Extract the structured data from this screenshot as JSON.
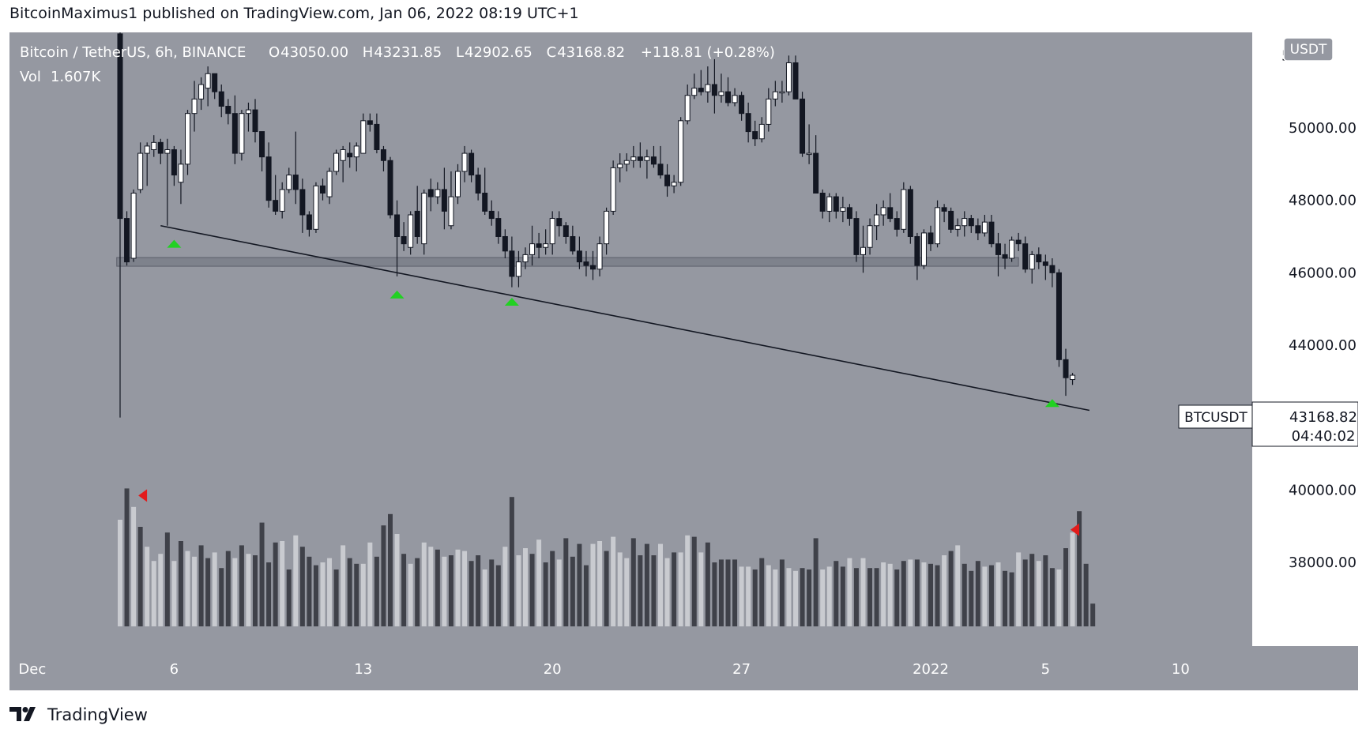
{
  "header": {
    "published": "BitcoinMaximus1 published on TradingView.com, Jan 06, 2022 08:19 UTC+1"
  },
  "footer": {
    "brand": "TradingView",
    "logo_icon": "tradingview-logo-icon"
  },
  "colors": {
    "plot_bg": "#9598a1",
    "axis_bg": "#ffffff",
    "up_candle": "#ffffff",
    "down_candle": "#131722",
    "vol_up": "#c9cbd0",
    "vol_down": "#3f4149",
    "marker_green": "#22d122",
    "marker_red": "#e21b1b",
    "support_zone": "#7e828c"
  },
  "legend": {
    "symbol": "Bitcoin / TetherUS, 6h, BINANCE",
    "o_label": "O",
    "o_value": "43050.00",
    "h_label": "H",
    "h_value": "43231.85",
    "l_label": "L",
    "l_value": "42902.65",
    "c_label": "C",
    "c_value": "43168.82",
    "change": "+118.81 (+0.28%)",
    "vol_label": "Vol",
    "vol_value": "1.607K"
  },
  "currency_badge": "USDT",
  "price_label": {
    "symbol": "BTCUSDT",
    "price": "43168.82",
    "countdown": "04:40:02"
  },
  "chart_data": {
    "type": "candlestick",
    "title": "Bitcoin / TetherUS, 6h, BINANCE",
    "ylim": [
      37300,
      52700
    ],
    "y_ticks": [
      38000,
      40000,
      42000,
      44000,
      46000,
      48000,
      50000
    ],
    "y_tick_labels": [
      "38000.00",
      "40000.00",
      "42000.00",
      "44000.00",
      "46000.00",
      "48000.00",
      "50000.00"
    ],
    "y_top_label_partial": "52",
    "x_ticks": [
      "Dec",
      "6",
      "13",
      "20",
      "27",
      "2022",
      "5",
      "10"
    ],
    "x_tick_index": [
      -13,
      8,
      36,
      64,
      92,
      120,
      137,
      157
    ],
    "candle_x0_day": 4.0,
    "bar_period_days": 0.25,
    "candles": [
      [
        52600,
        52700,
        47500,
        47500
      ],
      [
        47500,
        47700,
        46200,
        46300
      ],
      [
        46400,
        48300,
        46300,
        48200
      ],
      [
        48300,
        49600,
        48200,
        49300
      ],
      [
        49300,
        49600,
        48400,
        49500
      ],
      [
        49400,
        49800,
        49200,
        49600
      ],
      [
        49600,
        49700,
        49000,
        49300
      ],
      [
        49300,
        49700,
        47300,
        49400
      ],
      [
        49400,
        49500,
        48400,
        48700
      ],
      [
        48500,
        49400,
        47900,
        49000
      ],
      [
        49000,
        50500,
        48700,
        50400
      ],
      [
        50400,
        51300,
        49900,
        50800
      ],
      [
        50800,
        51400,
        50500,
        51200
      ],
      [
        51100,
        51700,
        50600,
        51500
      ],
      [
        51500,
        51400,
        50800,
        51000
      ],
      [
        51000,
        51200,
        50300,
        50600
      ],
      [
        50600,
        50800,
        50100,
        50400
      ],
      [
        50400,
        50900,
        49000,
        49300
      ],
      [
        49300,
        50500,
        49100,
        50400
      ],
      [
        50400,
        50700,
        49900,
        50500
      ],
      [
        50500,
        50800,
        49600,
        49900
      ],
      [
        49900,
        49900,
        48800,
        49200
      ],
      [
        49200,
        49600,
        47800,
        48000
      ],
      [
        48000,
        48700,
        47600,
        47700
      ],
      [
        47700,
        48500,
        47500,
        48300
      ],
      [
        48300,
        48900,
        48200,
        48700
      ],
      [
        48700,
        49900,
        47900,
        48300
      ],
      [
        48300,
        48600,
        47100,
        47600
      ],
      [
        47600,
        47700,
        47000,
        47200
      ],
      [
        47200,
        48500,
        47100,
        48400
      ],
      [
        48400,
        48600,
        48000,
        48200
      ],
      [
        48100,
        48900,
        47900,
        48800
      ],
      [
        48800,
        49400,
        48700,
        49300
      ],
      [
        49100,
        49500,
        48500,
        49400
      ],
      [
        49300,
        49600,
        48900,
        49200
      ],
      [
        49200,
        49600,
        48800,
        49500
      ],
      [
        49300,
        50400,
        49300,
        50200
      ],
      [
        50200,
        50400,
        49900,
        50100
      ],
      [
        50100,
        50400,
        49300,
        49400
      ],
      [
        49400,
        49500,
        48800,
        49100
      ],
      [
        49100,
        49200,
        47500,
        47600
      ],
      [
        47600,
        48000,
        45900,
        47000
      ],
      [
        47000,
        47400,
        46600,
        46800
      ],
      [
        46700,
        47700,
        46500,
        47600
      ],
      [
        47700,
        48400,
        46800,
        47000
      ],
      [
        46800,
        48300,
        46500,
        48200
      ],
      [
        48300,
        48600,
        47700,
        48100
      ],
      [
        48100,
        48500,
        47900,
        48300
      ],
      [
        48300,
        48900,
        47200,
        47700
      ],
      [
        47300,
        48800,
        47200,
        48100
      ],
      [
        48100,
        49000,
        47900,
        48800
      ],
      [
        48800,
        49500,
        48500,
        49300
      ],
      [
        49300,
        49400,
        48500,
        48700
      ],
      [
        48700,
        48900,
        48000,
        48200
      ],
      [
        48200,
        48900,
        47600,
        47700
      ],
      [
        47700,
        48000,
        47300,
        47500
      ],
      [
        47500,
        47700,
        46800,
        47000
      ],
      [
        47000,
        47200,
        46400,
        46600
      ],
      [
        46600,
        47000,
        45600,
        45900
      ],
      [
        45900,
        46600,
        45600,
        46300
      ],
      [
        46300,
        46700,
        46100,
        46500
      ],
      [
        46500,
        47300,
        46200,
        46800
      ],
      [
        46800,
        47100,
        46400,
        46700
      ],
      [
        46700,
        47200,
        46500,
        46800
      ],
      [
        46800,
        47700,
        46500,
        47500
      ],
      [
        47500,
        47700,
        47000,
        47300
      ],
      [
        47300,
        47400,
        46800,
        47000
      ],
      [
        47000,
        47300,
        46500,
        46600
      ],
      [
        46600,
        47000,
        46100,
        46300
      ],
      [
        46300,
        46600,
        45900,
        46200
      ],
      [
        46200,
        46600,
        45800,
        46100
      ],
      [
        46100,
        47000,
        45900,
        46800
      ],
      [
        46800,
        47800,
        46500,
        47700
      ],
      [
        47700,
        49100,
        47600,
        48900
      ],
      [
        48900,
        49300,
        48500,
        49000
      ],
      [
        49000,
        49300,
        48800,
        49100
      ],
      [
        49100,
        49500,
        48900,
        49200
      ],
      [
        49200,
        49600,
        48900,
        49100
      ],
      [
        49100,
        49400,
        48600,
        49200
      ],
      [
        49200,
        49500,
        48900,
        49000
      ],
      [
        49000,
        49500,
        48600,
        48700
      ],
      [
        48700,
        49000,
        48100,
        48400
      ],
      [
        48400,
        48700,
        48200,
        48500
      ],
      [
        48500,
        50300,
        48400,
        50200
      ],
      [
        50200,
        51200,
        50100,
        50900
      ],
      [
        50900,
        51500,
        50800,
        51100
      ],
      [
        51100,
        51600,
        50900,
        51000
      ],
      [
        51000,
        51700,
        50700,
        51200
      ],
      [
        51200,
        51900,
        50400,
        50900
      ],
      [
        50900,
        51500,
        50700,
        51000
      ],
      [
        51000,
        51400,
        50600,
        50700
      ],
      [
        50700,
        51100,
        50600,
        50900
      ],
      [
        50900,
        51000,
        50200,
        50400
      ],
      [
        50400,
        50700,
        49600,
        49900
      ],
      [
        49900,
        50200,
        49500,
        49700
      ],
      [
        49700,
        50300,
        49600,
        50100
      ],
      [
        50100,
        51100,
        49900,
        50800
      ],
      [
        50800,
        51300,
        50600,
        51000
      ],
      [
        51000,
        51300,
        50700,
        51000
      ],
      [
        51000,
        52000,
        50900,
        51800
      ],
      [
        51800,
        52000,
        50800,
        50800
      ],
      [
        50800,
        51000,
        49200,
        49300
      ],
      [
        49300,
        50100,
        49000,
        49300
      ],
      [
        49300,
        49800,
        48200,
        48200
      ],
      [
        48200,
        48300,
        47500,
        47700
      ],
      [
        47700,
        48200,
        47400,
        48100
      ],
      [
        48100,
        48200,
        47500,
        47700
      ],
      [
        47700,
        48100,
        47400,
        47800
      ],
      [
        47800,
        47900,
        47300,
        47500
      ],
      [
        47500,
        47700,
        46300,
        46500
      ],
      [
        46500,
        47300,
        46000,
        46700
      ],
      [
        46700,
        47500,
        46500,
        47300
      ],
      [
        47300,
        47900,
        46900,
        47600
      ],
      [
        47600,
        48000,
        47300,
        47800
      ],
      [
        47800,
        48200,
        47400,
        47500
      ],
      [
        47500,
        47700,
        47000,
        47200
      ],
      [
        47200,
        48500,
        47100,
        48300
      ],
      [
        48300,
        48400,
        46800,
        47000
      ],
      [
        47000,
        47100,
        45800,
        46200
      ],
      [
        46200,
        47200,
        46100,
        47100
      ],
      [
        47100,
        47300,
        46600,
        46800
      ],
      [
        46800,
        48000,
        46700,
        47800
      ],
      [
        47800,
        47900,
        47400,
        47700
      ],
      [
        47700,
        47800,
        47100,
        47200
      ],
      [
        47200,
        47500,
        47000,
        47300
      ],
      [
        47300,
        47700,
        47000,
        47500
      ],
      [
        47500,
        47600,
        47100,
        47300
      ],
      [
        47300,
        47500,
        46900,
        47100
      ],
      [
        47100,
        47600,
        47000,
        47400
      ],
      [
        47400,
        47600,
        46700,
        46800
      ],
      [
        46800,
        47100,
        45900,
        46500
      ],
      [
        46500,
        46800,
        46100,
        46400
      ],
      [
        46400,
        47000,
        46300,
        46900
      ],
      [
        46900,
        47100,
        46600,
        46800
      ],
      [
        46800,
        47000,
        46000,
        46100
      ],
      [
        46100,
        46600,
        45700,
        46500
      ],
      [
        46500,
        46700,
        46100,
        46300
      ],
      [
        46300,
        46500,
        45800,
        46200
      ],
      [
        46200,
        46400,
        45600,
        46000
      ],
      [
        46000,
        46100,
        43400,
        43600
      ],
      [
        43600,
        43900,
        42600,
        43100
      ],
      [
        43050,
        43231.85,
        42902.65,
        43168.82
      ]
    ],
    "volume_ylim": [
      0,
      100
    ],
    "volumes": [
      75,
      97,
      84,
      70,
      56,
      46,
      51,
      66,
      46,
      60,
      53,
      49,
      57,
      48,
      52,
      41,
      53,
      48,
      57,
      51,
      50,
      73,
      45,
      59,
      60,
      40,
      64,
      56,
      49,
      43,
      45,
      48,
      40,
      57,
      48,
      44,
      44,
      59,
      49,
      71,
      79,
      65,
      51,
      44,
      48,
      59,
      56,
      54,
      49,
      50,
      54,
      53,
      46,
      50,
      40,
      47,
      43,
      56,
      91,
      50,
      55,
      51,
      61,
      45,
      53,
      47,
      62,
      49,
      58,
      43,
      58,
      60,
      53,
      63,
      52,
      48,
      62,
      50,
      58,
      50,
      58,
      48,
      52,
      52,
      64,
      63,
      52,
      59,
      45,
      47,
      47,
      47,
      42,
      42,
      40,
      48,
      43,
      40,
      47,
      41,
      39,
      41,
      40,
      62,
      40,
      42,
      46,
      42,
      48,
      41,
      48,
      41,
      41,
      45,
      44,
      40,
      46,
      47,
      47,
      45,
      44,
      43,
      50,
      53,
      57,
      44,
      39,
      46,
      42,
      43,
      45,
      39,
      38,
      52,
      47,
      51,
      46,
      50,
      41,
      40,
      55,
      66,
      81,
      44,
      16
    ],
    "volume_up": [
      true,
      false,
      true,
      false,
      true,
      true,
      true,
      false,
      true,
      false,
      true,
      true,
      false,
      false,
      true,
      false,
      false,
      true,
      false,
      true,
      false,
      false,
      false,
      false,
      true,
      false,
      true,
      false,
      false,
      false,
      true,
      true,
      false,
      true,
      false,
      false,
      true,
      true,
      false,
      false,
      false,
      true,
      false,
      true,
      false,
      true,
      true,
      false,
      true,
      false,
      true,
      true,
      false,
      false,
      true,
      false,
      false,
      true,
      false,
      true,
      true,
      false,
      true,
      false,
      false,
      true,
      false,
      false,
      false,
      false,
      true,
      true,
      false,
      true,
      true,
      true,
      false,
      false,
      false,
      false,
      true,
      true,
      false,
      true,
      true,
      false,
      true,
      false,
      false,
      false,
      false,
      false,
      true,
      true,
      false,
      false,
      true,
      true,
      false,
      true,
      true,
      false,
      false,
      false,
      true,
      true,
      false,
      false,
      true,
      false,
      true,
      false,
      false,
      true,
      true,
      false,
      false,
      true,
      false,
      true,
      false,
      false,
      true,
      false,
      true,
      false,
      false,
      false,
      true,
      false,
      true,
      false,
      false,
      true,
      false,
      false,
      true,
      false,
      false,
      true,
      false,
      true,
      false,
      false,
      false
    ],
    "support_zone": [
      46180,
      46420
    ],
    "support_zone_x": [
      -0.5,
      133
    ],
    "trendline": {
      "x1": 6,
      "y1": 47300,
      "x2": 143.5,
      "y2": 42200
    },
    "green_arrows": [
      {
        "x": 8,
        "y": 46800
      },
      {
        "x": 41,
        "y": 45400
      },
      {
        "x": 58,
        "y": 45200
      },
      {
        "x": 138,
        "y": 42400
      }
    ],
    "red_arrows": [
      {
        "x": 2,
        "vol": 92
      },
      {
        "x": 140,
        "vol": 68
      }
    ],
    "tall_wick_index": 0,
    "tall_wick_low": 42000,
    "grid": false,
    "legend_position": "top-left"
  }
}
